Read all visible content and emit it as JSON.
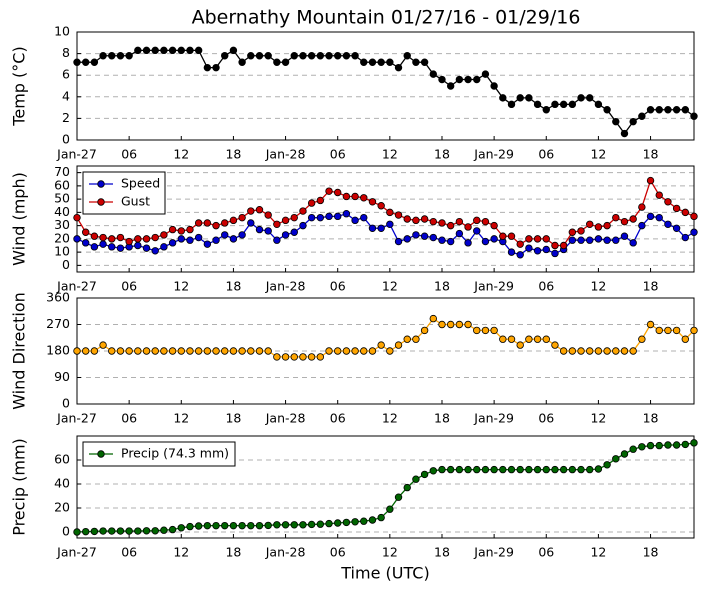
{
  "chart_data": [
    {
      "type": "line",
      "title": "Abernathy Mountain 01/27/16 - 01/29/16",
      "ylabel": "Temp (°C)",
      "x": [
        0,
        1,
        2,
        3,
        4,
        5,
        6,
        7,
        8,
        9,
        10,
        11,
        12,
        13,
        14,
        15,
        16,
        17,
        18,
        19,
        20,
        21,
        22,
        23,
        24,
        25,
        26,
        27,
        28,
        29,
        30,
        31,
        32,
        33,
        34,
        35,
        36,
        37,
        38,
        39,
        40,
        41,
        42,
        43,
        44,
        45,
        46,
        47,
        48,
        49,
        50,
        51,
        52,
        53,
        54,
        55,
        56,
        57,
        58,
        59,
        60,
        61,
        62,
        63,
        64,
        65,
        66,
        67,
        68,
        69,
        70,
        71
      ],
      "xlim": [
        0,
        71
      ],
      "xticks": [
        {
          "value": 0,
          "label": "Jan-27"
        },
        {
          "value": 6,
          "label": "06"
        },
        {
          "value": 12,
          "label": "12"
        },
        {
          "value": 18,
          "label": "18"
        },
        {
          "value": 24,
          "label": "Jan-28"
        },
        {
          "value": 30,
          "label": "06"
        },
        {
          "value": 36,
          "label": "12"
        },
        {
          "value": 42,
          "label": "18"
        },
        {
          "value": 48,
          "label": "Jan-29"
        },
        {
          "value": 54,
          "label": "06"
        },
        {
          "value": 60,
          "label": "12"
        },
        {
          "value": 66,
          "label": "18"
        }
      ],
      "ylim": [
        0,
        10
      ],
      "yticks": [
        0,
        2,
        4,
        6,
        8,
        10
      ],
      "grid": true,
      "color": "#000000",
      "values": [
        7.2,
        7.2,
        7.2,
        7.8,
        7.8,
        7.8,
        7.8,
        8.3,
        8.3,
        8.3,
        8.3,
        8.3,
        8.3,
        8.3,
        8.3,
        6.7,
        6.7,
        7.8,
        8.3,
        7.2,
        7.8,
        7.8,
        7.8,
        7.2,
        7.2,
        7.8,
        7.8,
        7.8,
        7.8,
        7.8,
        7.8,
        7.8,
        7.8,
        7.2,
        7.2,
        7.2,
        7.2,
        6.7,
        7.8,
        7.2,
        7.2,
        6.1,
        5.6,
        5.0,
        5.6,
        5.6,
        5.6,
        6.1,
        5.0,
        3.9,
        3.3,
        3.9,
        3.9,
        3.3,
        2.8,
        3.3,
        3.3,
        3.3,
        3.9,
        3.9,
        3.3,
        2.8,
        1.7,
        0.6,
        1.7,
        2.2,
        2.8,
        2.8,
        2.8,
        2.8,
        2.8,
        2.2
      ]
    },
    {
      "type": "line",
      "ylabel": "Wind (mph)",
      "x": [
        0,
        1,
        2,
        3,
        4,
        5,
        6,
        7,
        8,
        9,
        10,
        11,
        12,
        13,
        14,
        15,
        16,
        17,
        18,
        19,
        20,
        21,
        22,
        23,
        24,
        25,
        26,
        27,
        28,
        29,
        30,
        31,
        32,
        33,
        34,
        35,
        36,
        37,
        38,
        39,
        40,
        41,
        42,
        43,
        44,
        45,
        46,
        47,
        48,
        49,
        50,
        51,
        52,
        53,
        54,
        55,
        56,
        57,
        58,
        59,
        60,
        61,
        62,
        63,
        64,
        65,
        66,
        67,
        68,
        69,
        70,
        71
      ],
      "xlim": [
        0,
        71
      ],
      "xticks": [
        {
          "value": 0,
          "label": "Jan-27"
        },
        {
          "value": 6,
          "label": "06"
        },
        {
          "value": 12,
          "label": "12"
        },
        {
          "value": 18,
          "label": "18"
        },
        {
          "value": 24,
          "label": "Jan-28"
        },
        {
          "value": 30,
          "label": "06"
        },
        {
          "value": 36,
          "label": "12"
        },
        {
          "value": 42,
          "label": "18"
        },
        {
          "value": 48,
          "label": "Jan-29"
        },
        {
          "value": 54,
          "label": "06"
        },
        {
          "value": 60,
          "label": "12"
        },
        {
          "value": 66,
          "label": "18"
        }
      ],
      "ylim": [
        -5,
        75
      ],
      "yticks": [
        0,
        10,
        20,
        30,
        40,
        50,
        60,
        70
      ],
      "grid": true,
      "legend": "upper left",
      "series": [
        {
          "name": "Speed",
          "color": "#0000cc",
          "values": [
            20,
            17,
            14,
            16,
            14,
            13,
            14,
            15,
            13,
            11,
            14,
            17,
            20,
            19,
            21,
            16,
            19,
            23,
            20,
            23,
            32,
            27,
            26,
            19,
            23,
            25,
            30,
            36,
            36,
            37,
            37,
            39,
            34,
            36,
            28,
            28,
            31,
            18,
            20,
            23,
            22,
            21,
            19,
            18,
            24,
            17,
            26,
            18,
            20,
            18,
            10,
            8,
            13,
            11,
            12,
            9,
            12,
            19,
            19,
            19,
            20,
            19,
            19,
            22,
            17,
            30,
            37,
            36,
            31,
            28,
            21,
            25
          ]
        },
        {
          "name": "Gust",
          "color": "#cc0000",
          "values": [
            36,
            25,
            22,
            21,
            20,
            21,
            18,
            20,
            20,
            21,
            23,
            27,
            26,
            27,
            32,
            32,
            30,
            32,
            34,
            36,
            41,
            42,
            38,
            31,
            34,
            36,
            41,
            47,
            49,
            56,
            55,
            52,
            52,
            51,
            48,
            45,
            40,
            38,
            35,
            34,
            35,
            33,
            32,
            30,
            33,
            29,
            34,
            33,
            30,
            22,
            22,
            16,
            20,
            20,
            20,
            15,
            15,
            25,
            26,
            31,
            29,
            30,
            36,
            33,
            35,
            44,
            64,
            53,
            48,
            43,
            40,
            37
          ]
        }
      ]
    },
    {
      "type": "line",
      "ylabel": "Wind Direction",
      "x": [
        0,
        1,
        2,
        3,
        4,
        5,
        6,
        7,
        8,
        9,
        10,
        11,
        12,
        13,
        14,
        15,
        16,
        17,
        18,
        19,
        20,
        21,
        22,
        23,
        24,
        25,
        26,
        27,
        28,
        29,
        30,
        31,
        32,
        33,
        34,
        35,
        36,
        37,
        38,
        39,
        40,
        41,
        42,
        43,
        44,
        45,
        46,
        47,
        48,
        49,
        50,
        51,
        52,
        53,
        54,
        55,
        56,
        57,
        58,
        59,
        60,
        61,
        62,
        63,
        64,
        65,
        66,
        67,
        68,
        69,
        70,
        71
      ],
      "xlim": [
        0,
        71
      ],
      "xticks": [
        {
          "value": 0,
          "label": "Jan-27"
        },
        {
          "value": 6,
          "label": "06"
        },
        {
          "value": 12,
          "label": "12"
        },
        {
          "value": 18,
          "label": "18"
        },
        {
          "value": 24,
          "label": "Jan-28"
        },
        {
          "value": 30,
          "label": "06"
        },
        {
          "value": 36,
          "label": "12"
        },
        {
          "value": 42,
          "label": "18"
        },
        {
          "value": 48,
          "label": "Jan-29"
        },
        {
          "value": 54,
          "label": "06"
        },
        {
          "value": 60,
          "label": "12"
        },
        {
          "value": 66,
          "label": "18"
        }
      ],
      "ylim": [
        0,
        360
      ],
      "yticks": [
        0,
        90,
        180,
        270,
        360
      ],
      "grid": true,
      "color": "#ffa500",
      "values": [
        180,
        180,
        180,
        200,
        180,
        180,
        180,
        180,
        180,
        180,
        180,
        180,
        180,
        180,
        180,
        180,
        180,
        180,
        180,
        180,
        180,
        180,
        180,
        160,
        160,
        160,
        160,
        160,
        160,
        180,
        180,
        180,
        180,
        180,
        180,
        200,
        180,
        200,
        220,
        220,
        250,
        290,
        270,
        270,
        270,
        270,
        250,
        250,
        250,
        220,
        220,
        200,
        220,
        220,
        220,
        200,
        180,
        180,
        180,
        180,
        180,
        180,
        180,
        180,
        180,
        220,
        270,
        250,
        250,
        250,
        220,
        250
      ]
    },
    {
      "type": "line",
      "ylabel": "Precip (mm)",
      "xlabel": "Time (UTC)",
      "x": [
        0,
        1,
        2,
        3,
        4,
        5,
        6,
        7,
        8,
        9,
        10,
        11,
        12,
        13,
        14,
        15,
        16,
        17,
        18,
        19,
        20,
        21,
        22,
        23,
        24,
        25,
        26,
        27,
        28,
        29,
        30,
        31,
        32,
        33,
        34,
        35,
        36,
        37,
        38,
        39,
        40,
        41,
        42,
        43,
        44,
        45,
        46,
        47,
        48,
        49,
        50,
        51,
        52,
        53,
        54,
        55,
        56,
        57,
        58,
        59,
        60,
        61,
        62,
        63,
        64,
        65,
        66,
        67,
        68,
        69,
        70,
        71
      ],
      "xlim": [
        0,
        71
      ],
      "xticks": [
        {
          "value": 0,
          "label": "Jan-27"
        },
        {
          "value": 6,
          "label": "06"
        },
        {
          "value": 12,
          "label": "12"
        },
        {
          "value": 18,
          "label": "18"
        },
        {
          "value": 24,
          "label": "Jan-28"
        },
        {
          "value": 30,
          "label": "06"
        },
        {
          "value": 36,
          "label": "12"
        },
        {
          "value": 42,
          "label": "18"
        },
        {
          "value": 48,
          "label": "Jan-29"
        },
        {
          "value": 54,
          "label": "06"
        },
        {
          "value": 60,
          "label": "12"
        },
        {
          "value": 66,
          "label": "18"
        }
      ],
      "ylim": [
        -5,
        80
      ],
      "yticks": [
        0,
        20,
        40,
        60
      ],
      "grid": true,
      "legend": "upper left",
      "series": [
        {
          "name": "Precip (74.3 mm)",
          "color": "#006400",
          "values": [
            0,
            0.3,
            0.5,
            0.8,
            0.8,
            0.8,
            0.8,
            0.8,
            1,
            1,
            1.5,
            2,
            3.5,
            4.5,
            5,
            5.3,
            5.3,
            5.3,
            5.3,
            5.3,
            5.3,
            5.3,
            5.5,
            6,
            6,
            6,
            6,
            6.3,
            6.5,
            7,
            7.5,
            8,
            8.5,
            9,
            10,
            12,
            19,
            29,
            37,
            44,
            48,
            51,
            52,
            52,
            52,
            52,
            52,
            52,
            52,
            52,
            52,
            52,
            52,
            52,
            52,
            52,
            52,
            52,
            52,
            52,
            52.5,
            56,
            61,
            65,
            69,
            71,
            72,
            72,
            72.5,
            72.5,
            73,
            74.3
          ]
        }
      ]
    }
  ]
}
